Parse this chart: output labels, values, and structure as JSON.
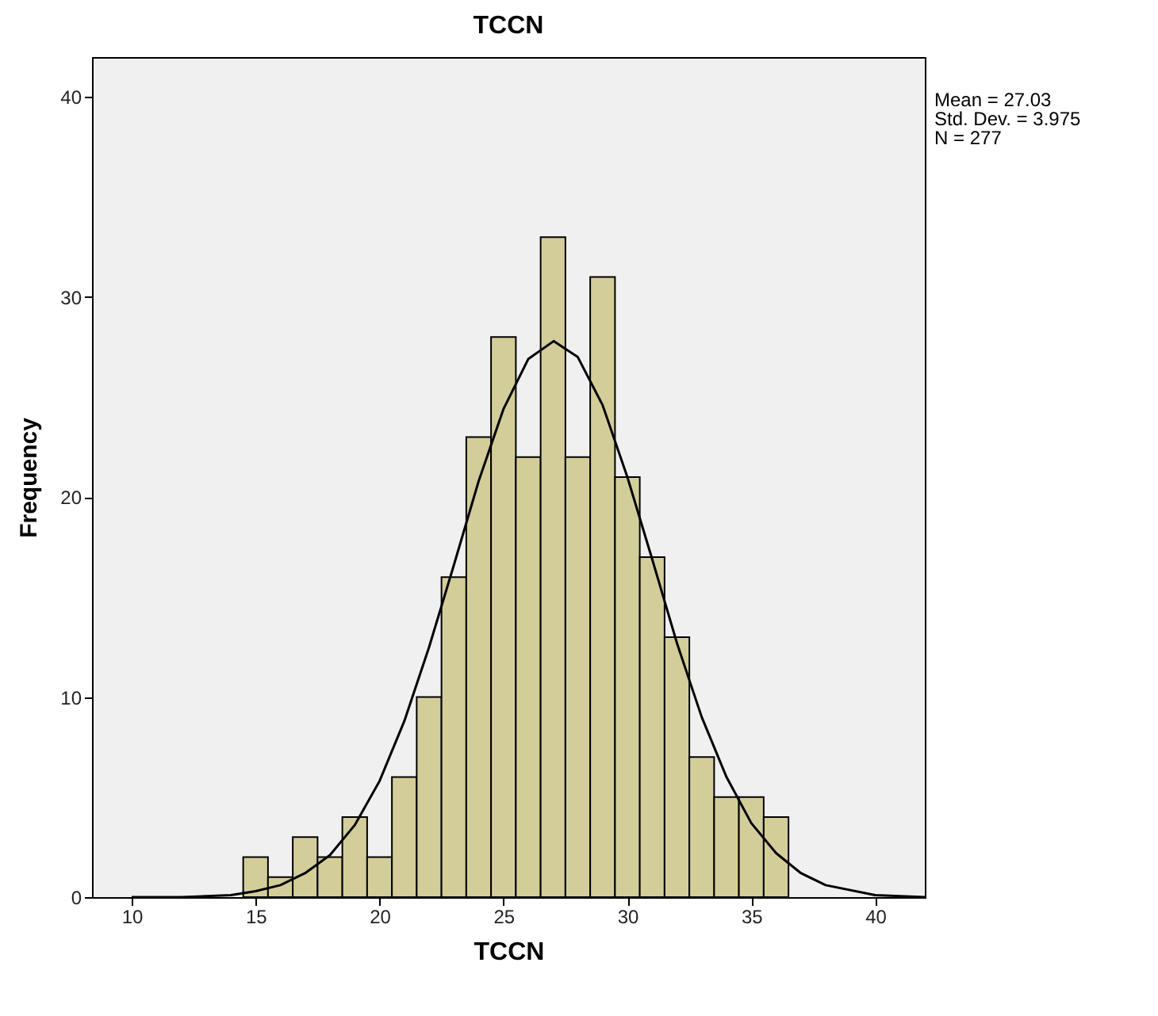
{
  "chart_data": {
    "type": "histogram",
    "title": "TCCN",
    "xlabel": "TCCN",
    "ylabel": "Frequency",
    "bins": [
      14.5,
      15.5,
      16.5,
      17.5,
      18.5,
      19.5,
      20.5,
      21.5,
      22.5,
      23.5,
      24.5,
      25.5,
      26.5,
      27.5,
      28.5,
      29.5,
      30.5,
      31.5,
      32.5,
      33.5,
      34.5,
      35.5,
      36.5
    ],
    "values": [
      2,
      1,
      3,
      2,
      4,
      2,
      6,
      10,
      16,
      23,
      28,
      22,
      33,
      22,
      31,
      21,
      17,
      13,
      7,
      5,
      5,
      4
    ],
    "color": "#d3ce99",
    "series": [
      {
        "type": "line",
        "color": "#000000",
        "x": [
          10,
          12,
          14,
          15,
          16,
          17,
          18,
          19,
          20,
          21,
          22,
          23,
          24,
          25,
          26,
          27.03,
          28,
          29,
          30,
          31,
          32,
          33,
          34,
          35,
          36,
          37,
          38,
          40,
          42
        ],
        "values": [
          0,
          0,
          0.1,
          0.3,
          0.6,
          1.2,
          2.1,
          3.6,
          5.8,
          8.8,
          12.5,
          16.6,
          20.8,
          24.4,
          26.9,
          27.8,
          27,
          24.6,
          21,
          16.9,
          12.7,
          9,
          6,
          3.7,
          2.2,
          1.2,
          0.6,
          0.1,
          0
        ]
      }
    ],
    "xlim": [
      8.4,
      42
    ],
    "xticks": [
      10,
      15,
      20,
      25,
      30,
      35,
      40
    ],
    "ylim": [
      0,
      42
    ],
    "yticks": [
      0,
      10,
      20,
      30,
      40
    ],
    "grid": false,
    "annotations": [
      "Mean = 27.03",
      "Std. Dev. = 3.975",
      "N = 277"
    ]
  }
}
